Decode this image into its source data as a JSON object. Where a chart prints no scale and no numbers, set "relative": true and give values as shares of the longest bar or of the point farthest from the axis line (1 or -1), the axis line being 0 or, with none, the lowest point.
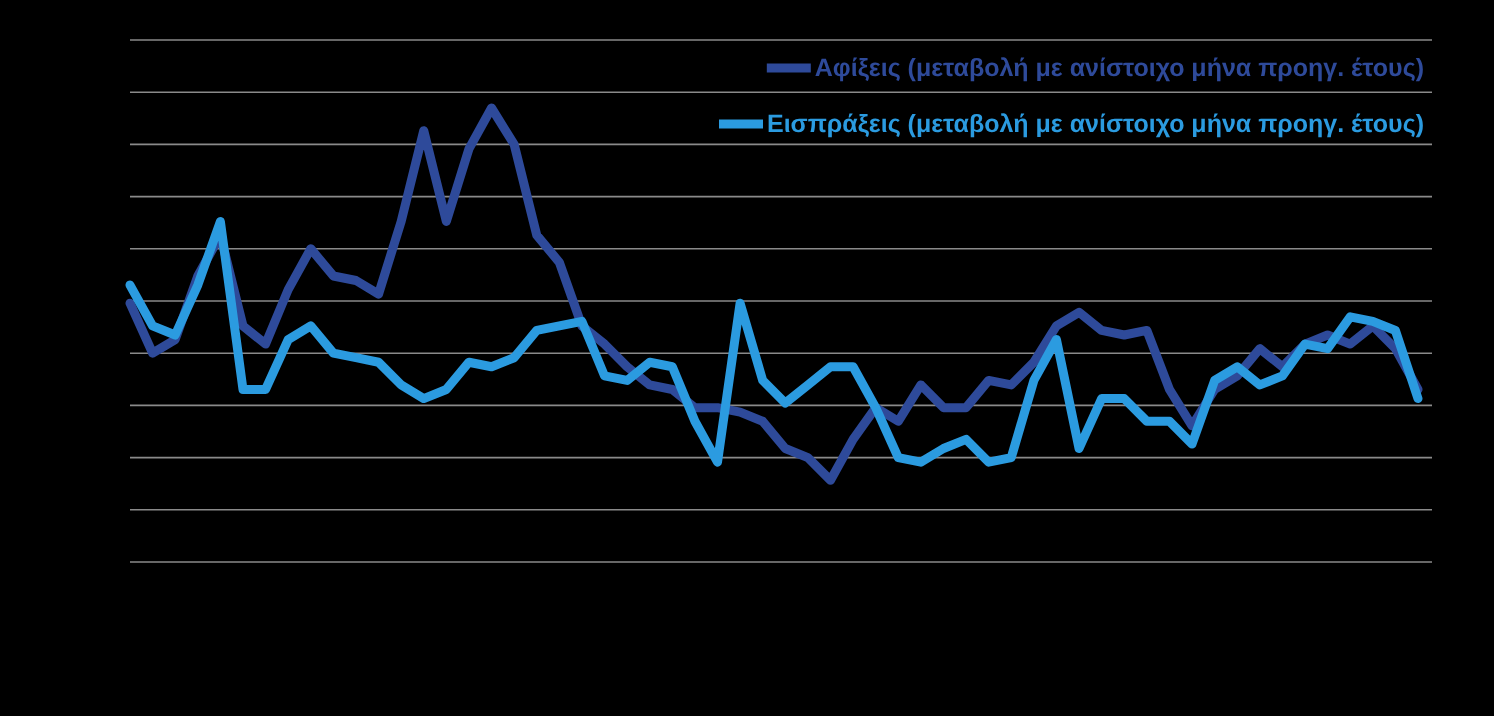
{
  "chart_data": {
    "type": "line",
    "relative": true,
    "grid": true,
    "legend": "top right",
    "line_style": "solid",
    "marker": "none",
    "categories": [
      null,
      null,
      null,
      null,
      null,
      null,
      null,
      null,
      null,
      null,
      null,
      null,
      null,
      null,
      null,
      null,
      null,
      null,
      null,
      null,
      null,
      null,
      null,
      null,
      null,
      null,
      null,
      null,
      null,
      null,
      null,
      null,
      null,
      null,
      null,
      null,
      null,
      null,
      null,
      null,
      null,
      null,
      null,
      null,
      null,
      null,
      null,
      null,
      null,
      null,
      null,
      null,
      null,
      null,
      null,
      null,
      null,
      null
    ],
    "series": [
      {
        "name": "Αφίξεις (μεταβολή με ανίστοιχο μήνα προηγ. έτους)",
        "color": "#2e4a9a",
        "values": [
          0.57,
          0.46,
          0.49,
          0.63,
          0.72,
          0.52,
          0.48,
          0.6,
          0.69,
          0.63,
          0.62,
          0.59,
          0.75,
          0.95,
          0.75,
          0.91,
          1,
          0.92,
          0.72,
          0.66,
          0.52,
          0.48,
          0.43,
          0.39,
          0.38,
          0.34,
          0.34,
          0.33,
          0.31,
          0.25,
          0.23,
          0.18,
          0.27,
          0.34,
          0.31,
          0.39,
          0.34,
          0.34,
          0.4,
          0.39,
          0.44,
          0.52,
          0.55,
          0.51,
          0.5,
          0.51,
          0.38,
          0.3,
          0.38,
          0.41,
          0.47,
          0.43,
          0.48,
          0.5,
          0.48,
          0.52,
          0.47,
          0.38
        ]
      },
      {
        "name": "Εισπράξεις (μεταβολή με ανίστοιχο μήνα προηγ. έτους)",
        "color": "#2b9be0",
        "values": [
          0.61,
          0.52,
          0.5,
          0.61,
          0.75,
          0.38,
          0.38,
          0.49,
          0.52,
          0.46,
          0.45,
          0.44,
          0.39,
          0.36,
          0.38,
          0.44,
          0.43,
          0.45,
          0.51,
          0.52,
          0.53,
          0.41,
          0.4,
          0.44,
          0.43,
          0.31,
          0.22,
          0.57,
          0.4,
          0.35,
          0.39,
          0.43,
          0.43,
          0.34,
          0.23,
          0.22,
          0.25,
          0.27,
          0.22,
          0.23,
          0.4,
          0.49,
          0.25,
          0.36,
          0.36,
          0.31,
          0.31,
          0.26,
          0.4,
          0.43,
          0.39,
          0.41,
          0.48,
          0.47,
          0.54,
          0.53,
          0.51,
          0.36
        ]
      }
    ]
  }
}
